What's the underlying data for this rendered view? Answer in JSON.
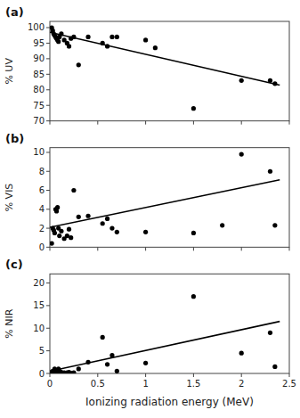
{
  "chart_data": [
    {
      "type": "scatter",
      "title": "(a)",
      "ylabel": "% UV",
      "xlim": [
        0,
        2.5
      ],
      "xticks": [
        0,
        0.5,
        1,
        1.5,
        2,
        2.5
      ],
      "ylim": [
        70,
        102
      ],
      "yticks": [
        70,
        75,
        80,
        85,
        90,
        95,
        100
      ],
      "grid": false,
      "tick_labels": "y",
      "series": [
        {
          "type": "scatter",
          "color": "black",
          "marker": "point",
          "x": [
            0.02,
            0.03,
            0.04,
            0.05,
            0.06,
            0.07,
            0.08,
            0.09,
            0.1,
            0.12,
            0.15,
            0.18,
            0.2,
            0.22,
            0.25,
            0.3,
            0.4,
            0.55,
            0.6,
            0.65,
            0.7,
            1.0,
            1.1,
            1.5,
            2.0,
            2.3,
            2.35
          ],
          "values": [
            100,
            99,
            98,
            97.5,
            97,
            96.5,
            96,
            95.5,
            97,
            98,
            96,
            95,
            94,
            96.5,
            97,
            88,
            97,
            95,
            94,
            97,
            97,
            96,
            93.5,
            74,
            83,
            83,
            82
          ]
        },
        {
          "type": "line",
          "color": "black",
          "line_style": "solid",
          "x": [
            0,
            2.4
          ],
          "values": [
            98.5,
            81.5
          ]
        }
      ]
    },
    {
      "type": "scatter",
      "title": "(b)",
      "ylabel": "% VIS",
      "xlim": [
        0,
        2.5
      ],
      "xticks": [
        0,
        0.5,
        1,
        1.5,
        2,
        2.5
      ],
      "ylim": [
        0,
        10.5
      ],
      "yticks": [
        0,
        2,
        4,
        6,
        8,
        10
      ],
      "grid": false,
      "tick_labels": "y",
      "series": [
        {
          "type": "scatter",
          "color": "black",
          "marker": "point",
          "x": [
            0.02,
            0.03,
            0.04,
            0.05,
            0.06,
            0.07,
            0.08,
            0.09,
            0.1,
            0.12,
            0.15,
            0.18,
            0.2,
            0.22,
            0.25,
            0.3,
            0.4,
            0.55,
            0.6,
            0.65,
            0.7,
            1.0,
            1.5,
            1.8,
            2.0,
            2.3,
            2.35
          ],
          "values": [
            0.4,
            2.0,
            1.8,
            1.5,
            4.0,
            3.8,
            4.2,
            2.0,
            1.2,
            1.7,
            0.9,
            1.2,
            1.9,
            1.0,
            6.0,
            3.2,
            3.3,
            2.5,
            3.0,
            2.0,
            1.6,
            1.6,
            1.5,
            2.3,
            9.8,
            8.0,
            2.3
          ]
        },
        {
          "type": "line",
          "color": "black",
          "line_style": "solid",
          "x": [
            0,
            2.4
          ],
          "values": [
            2.1,
            7.1
          ]
        }
      ]
    },
    {
      "type": "scatter",
      "title": "(c)",
      "ylabel": "% NIR",
      "xlabel": "Ionizing radiation energy (MeV)",
      "xlim": [
        0,
        2.5
      ],
      "xticks": [
        0,
        0.5,
        1,
        1.5,
        2,
        2.5
      ],
      "ylim": [
        0,
        22
      ],
      "yticks": [
        0,
        5,
        10,
        15,
        20
      ],
      "grid": false,
      "series": [
        {
          "type": "scatter",
          "color": "black",
          "marker": "point",
          "x": [
            0.02,
            0.03,
            0.04,
            0.05,
            0.06,
            0.07,
            0.08,
            0.09,
            0.1,
            0.12,
            0.15,
            0.18,
            0.2,
            0.22,
            0.25,
            0.3,
            0.4,
            0.55,
            0.6,
            0.65,
            0.7,
            1.0,
            1.5,
            2.0,
            2.3,
            2.35
          ],
          "values": [
            0.3,
            0.5,
            0.5,
            1.0,
            0.3,
            0.2,
            0.2,
            1.0,
            0.5,
            0.3,
            0.2,
            0.2,
            0.3,
            0.1,
            0.2,
            1.0,
            2.5,
            8.0,
            2.0,
            4.0,
            0.5,
            2.3,
            17.0,
            4.5,
            9.0,
            1.5
          ]
        },
        {
          "type": "line",
          "color": "black",
          "line_style": "solid",
          "x": [
            0,
            2.4
          ],
          "values": [
            0.5,
            11.5
          ]
        }
      ]
    }
  ]
}
